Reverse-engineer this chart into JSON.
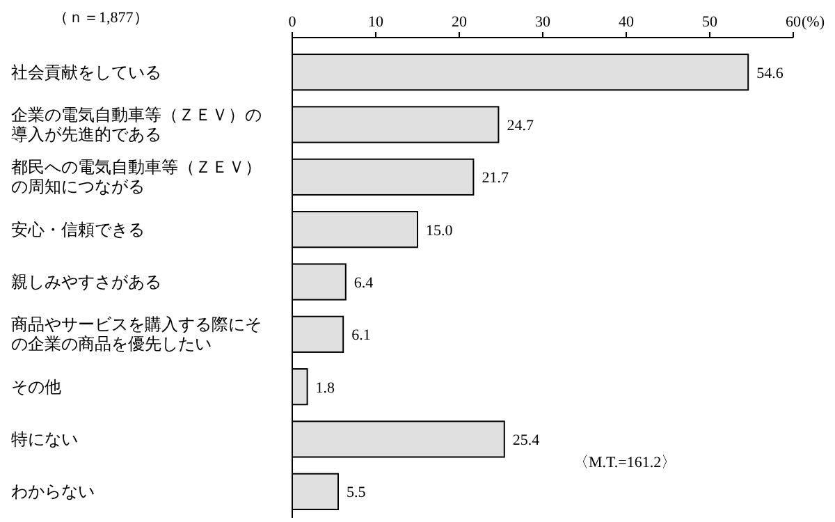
{
  "chart_data": {
    "type": "bar",
    "orientation": "horizontal",
    "xlabel": "(%)",
    "categories": [
      "社会貢献をしている",
      "企業の電気自動車等（ＺＥＶ）の導入が先進的である",
      "都民への電気自動車等（ＺＥＶ）の周知につながる",
      "安心・信頼できる",
      "親しみやすさがある",
      "商品やサービスを購入する際にその企業の商品を優先したい",
      "その他",
      "特にない",
      "わからない"
    ],
    "values": [
      54.6,
      24.7,
      21.7,
      15.0,
      6.4,
      6.1,
      1.8,
      25.4,
      5.5
    ],
    "value_labels": [
      "54.6",
      "24.7",
      "21.7",
      "15.0",
      "6.4",
      "6.1",
      "1.8",
      "25.4",
      "5.5"
    ],
    "color": "#e0e0e0",
    "xlim": [
      0,
      60
    ],
    "xticks": [
      0,
      10,
      20,
      30,
      40,
      50,
      60
    ],
    "annotations": [
      "（ｎ＝1,877）",
      "〈M.T.=161.2〉"
    ]
  }
}
